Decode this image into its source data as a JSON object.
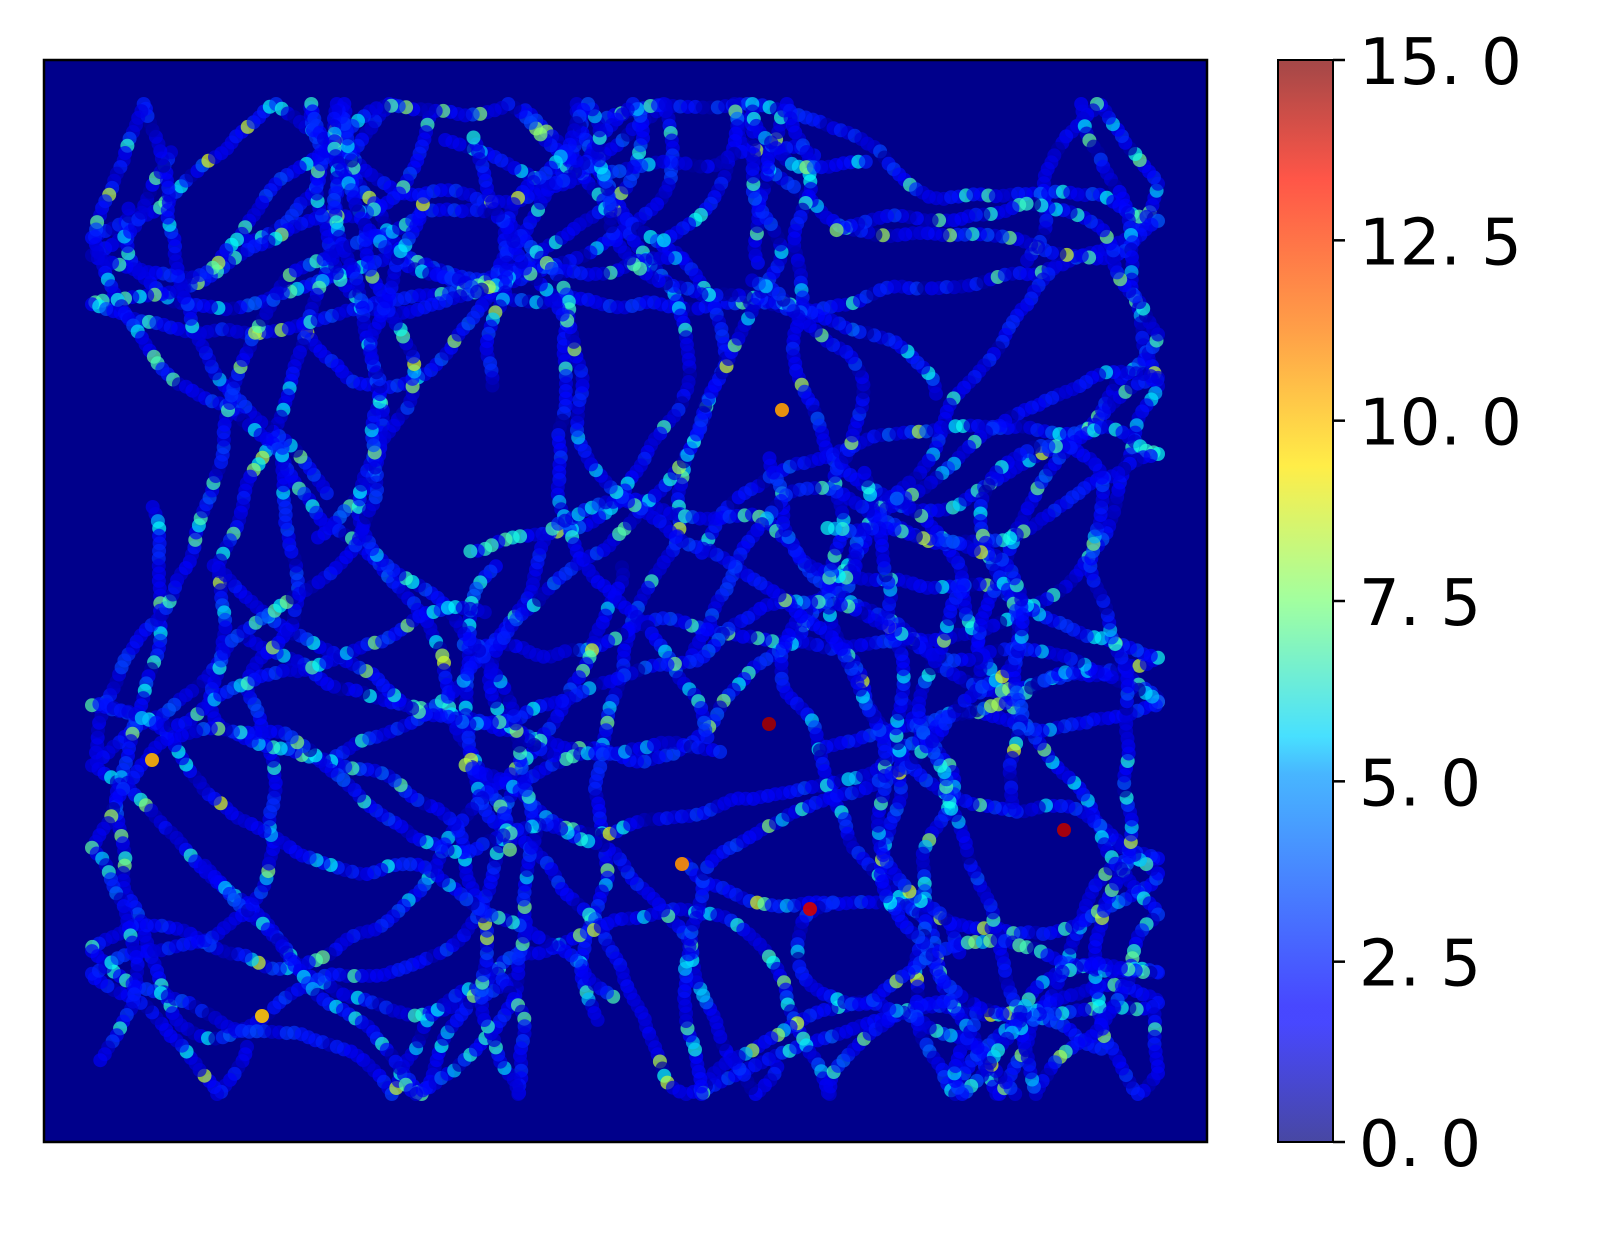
{
  "chart_data": {
    "type": "scatter",
    "title": "",
    "xlabel": "",
    "ylabel": "",
    "x_ticks": "none",
    "y_ticks": "none",
    "plot_background": "#00008b",
    "marker_alpha": 0.7,
    "colormap": "jet",
    "colorbar": {
      "range": [
        0.0,
        15.0
      ],
      "ticks": [
        0.0,
        2.5,
        5.0,
        7.5,
        10.0,
        12.5,
        15.0
      ],
      "tick_labels": [
        "0. 0",
        "2. 5",
        "5. 0",
        "7. 5",
        "10. 0",
        "12. 5",
        "15. 0"
      ],
      "placement": "right"
    },
    "note_values": "Points lie along meandering trajectories; each point's colour encodes a value 0–15 (mostly 1–5, a few high values).",
    "highlight_points": [
      {
        "value": 14.5
      },
      {
        "value": 14.2
      },
      {
        "value": 13.8
      },
      {
        "value": 11.0
      },
      {
        "value": 10.8
      },
      {
        "value": 10.5
      },
      {
        "value": 10.2
      }
    ]
  }
}
